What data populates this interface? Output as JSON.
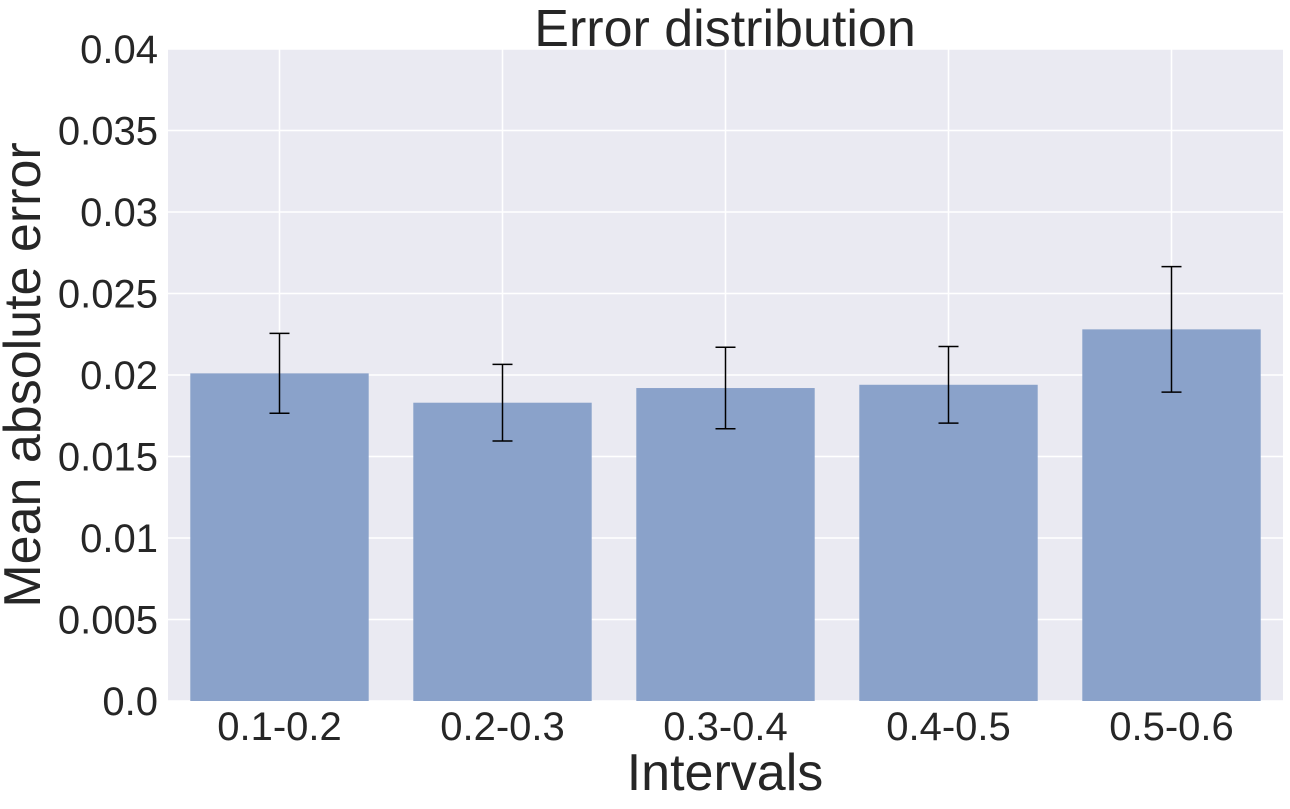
{
  "chart_data": {
    "type": "bar",
    "title": "Error distribution",
    "xlabel": "Intervals",
    "ylabel": "Mean absolute error",
    "categories": [
      "0.1-0.2",
      "0.2-0.3",
      "0.3-0.4",
      "0.4-0.5",
      "0.5-0.6"
    ],
    "values": [
      0.0201,
      0.0183,
      0.0192,
      0.0194,
      0.0228
    ],
    "errors": [
      0.00245,
      0.00235,
      0.0025,
      0.00235,
      0.00385
    ],
    "ylim": [
      0,
      0.04
    ],
    "yticks": [
      0,
      0.005,
      0.01,
      0.015,
      0.02,
      0.025,
      0.03,
      0.035,
      0.04
    ],
    "ytick_labels": [
      "0.0",
      "0.005",
      "0.01",
      "0.015",
      "0.02",
      "0.025",
      "0.03",
      "0.035",
      "0.04"
    ],
    "grid": true,
    "colors": {
      "bar": "#8aa2ca",
      "background": "#eaeaf2",
      "grid": "#ffffff",
      "errorbar": "#000000"
    }
  }
}
